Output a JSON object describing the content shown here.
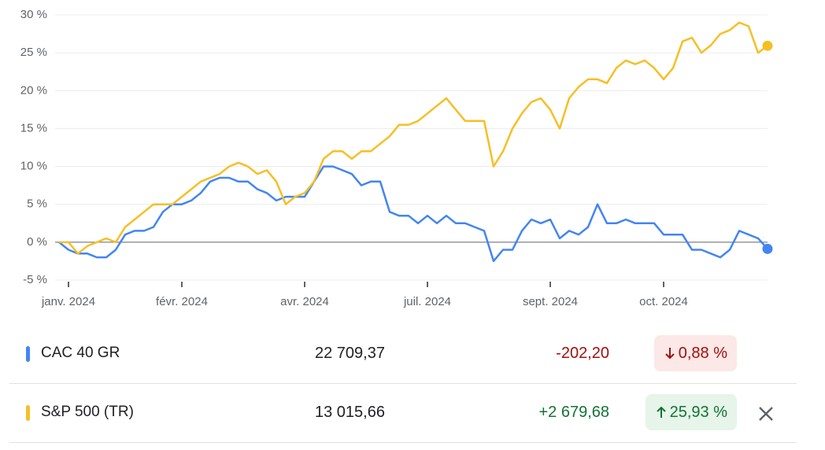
{
  "chart_data": {
    "type": "line",
    "categories": [
      null,
      "janv. 2024",
      null,
      null,
      null,
      null,
      null,
      null,
      null,
      null,
      null,
      null,
      null,
      "févr. 2024",
      null,
      null,
      null,
      null,
      null,
      null,
      null,
      null,
      null,
      null,
      null,
      null,
      "avr. 2024",
      null,
      null,
      null,
      null,
      null,
      null,
      null,
      null,
      null,
      null,
      null,
      null,
      "juil. 2024",
      null,
      null,
      null,
      null,
      null,
      null,
      null,
      null,
      null,
      null,
      null,
      null,
      "sept. 2024",
      null,
      null,
      null,
      null,
      null,
      null,
      null,
      null,
      null,
      null,
      null,
      "oct. 2024",
      null,
      null,
      null,
      null,
      null,
      null,
      null,
      null,
      null,
      null,
      null
    ],
    "series": [
      {
        "name": "CAC 40 GR",
        "color": "#4285f4",
        "values": [
          0,
          -1,
          -1.5,
          -1.5,
          -2,
          -2,
          -1,
          1,
          1.5,
          1.5,
          2,
          4,
          5,
          5,
          5.5,
          6.5,
          8,
          8.5,
          8.5,
          8,
          8,
          7,
          6.5,
          5.5,
          6,
          6,
          6,
          8,
          10,
          10,
          9.5,
          9,
          7.5,
          8,
          8,
          4,
          3.5,
          3.5,
          2.5,
          3.5,
          2.5,
          3.5,
          2.5,
          2.5,
          2,
          1.5,
          -2.5,
          -1,
          -1,
          1.5,
          3,
          2.5,
          3,
          0.5,
          1.5,
          1,
          2,
          5,
          2.5,
          2.5,
          3,
          2.5,
          2.5,
          2.5,
          1,
          1,
          1,
          -1,
          -1,
          -1.5,
          -2,
          -1,
          1.5,
          1,
          0.5,
          -0.88
        ]
      },
      {
        "name": "S&P 500 (TR)",
        "color": "#f6bf26",
        "values": [
          0,
          0,
          -1.5,
          -0.5,
          0,
          0.5,
          0,
          2,
          3,
          4,
          5,
          5,
          5,
          6,
          7,
          8,
          8.5,
          9,
          10,
          10.5,
          10,
          9,
          9.5,
          8,
          5,
          6,
          6.5,
          8,
          11,
          12,
          12,
          11,
          12,
          12,
          13,
          14,
          15.5,
          15.5,
          16,
          17,
          18,
          19,
          17.5,
          16,
          16,
          16,
          10,
          12,
          15,
          17,
          18.5,
          19,
          17.5,
          15,
          19,
          20.5,
          21.5,
          21.5,
          21,
          23,
          24,
          23.5,
          24,
          23,
          21.5,
          23,
          26.5,
          27,
          25,
          26,
          27.5,
          28,
          29,
          28.5,
          25,
          25.93
        ]
      }
    ],
    "ylim": [
      -5,
      30
    ],
    "yticks": [
      {
        "value": -5,
        "label": "-5 %"
      },
      {
        "value": 0,
        "label": "0 %"
      },
      {
        "value": 5,
        "label": "5 %"
      },
      {
        "value": 10,
        "label": "10 %"
      },
      {
        "value": 15,
        "label": "15 %"
      },
      {
        "value": 20,
        "label": "20 %"
      },
      {
        "value": 25,
        "label": "25 %"
      },
      {
        "value": 30,
        "label": "30 %"
      }
    ],
    "grid": true
  },
  "table": {
    "rows": [
      {
        "name": "CAC 40 GR",
        "price": "22 709,37",
        "change": "-202,20",
        "change_pct": "0,88 %"
      },
      {
        "name": "S&P 500 (TR)",
        "price": "13 015,66",
        "change": "+2 679,68",
        "change_pct": "25,93 %"
      }
    ]
  }
}
